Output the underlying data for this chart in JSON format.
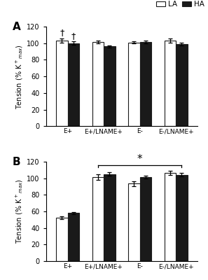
{
  "panel_A": {
    "categories": [
      "E+",
      "E+/LNAME+",
      "E-",
      "E-/LNAME+"
    ],
    "LA_values": [
      103.5,
      101.5,
      101.0,
      103.5
    ],
    "HA_values": [
      100.0,
      96.0,
      101.5,
      99.0
    ],
    "LA_errors": [
      2.5,
      2.0,
      1.5,
      2.5
    ],
    "HA_errors": [
      2.0,
      1.5,
      1.5,
      2.0
    ],
    "ylim": [
      0,
      120
    ],
    "yticks": [
      0,
      20,
      40,
      60,
      80,
      100,
      120
    ],
    "ylabel": "Tension (% K+max)",
    "label": "A",
    "dagger_bars": [
      [
        0,
        "LA"
      ],
      [
        0,
        "HA"
      ]
    ],
    "significance_bracket": null
  },
  "panel_B": {
    "categories": [
      "E+",
      "E+/LNAME+",
      "E-",
      "E-/LNAME+"
    ],
    "LA_values": [
      52.5,
      101.5,
      93.5,
      106.5
    ],
    "HA_values": [
      58.0,
      105.0,
      101.5,
      104.0
    ],
    "LA_errors": [
      2.0,
      3.5,
      3.0,
      2.5
    ],
    "HA_errors": [
      1.5,
      2.0,
      1.5,
      2.0
    ],
    "ylim": [
      0,
      120
    ],
    "yticks": [
      0,
      20,
      40,
      60,
      80,
      100,
      120
    ],
    "ylabel": "Tension (% K+max)",
    "label": "B",
    "dagger_bars": [],
    "significance_bracket": [
      1,
      3
    ]
  },
  "bar_width": 0.32,
  "LA_color": "#ffffff",
  "HA_color": "#1a1a1a",
  "edge_color": "#1a1a1a",
  "legend_labels": [
    "LA",
    "HA"
  ],
  "background_color": "#ffffff"
}
